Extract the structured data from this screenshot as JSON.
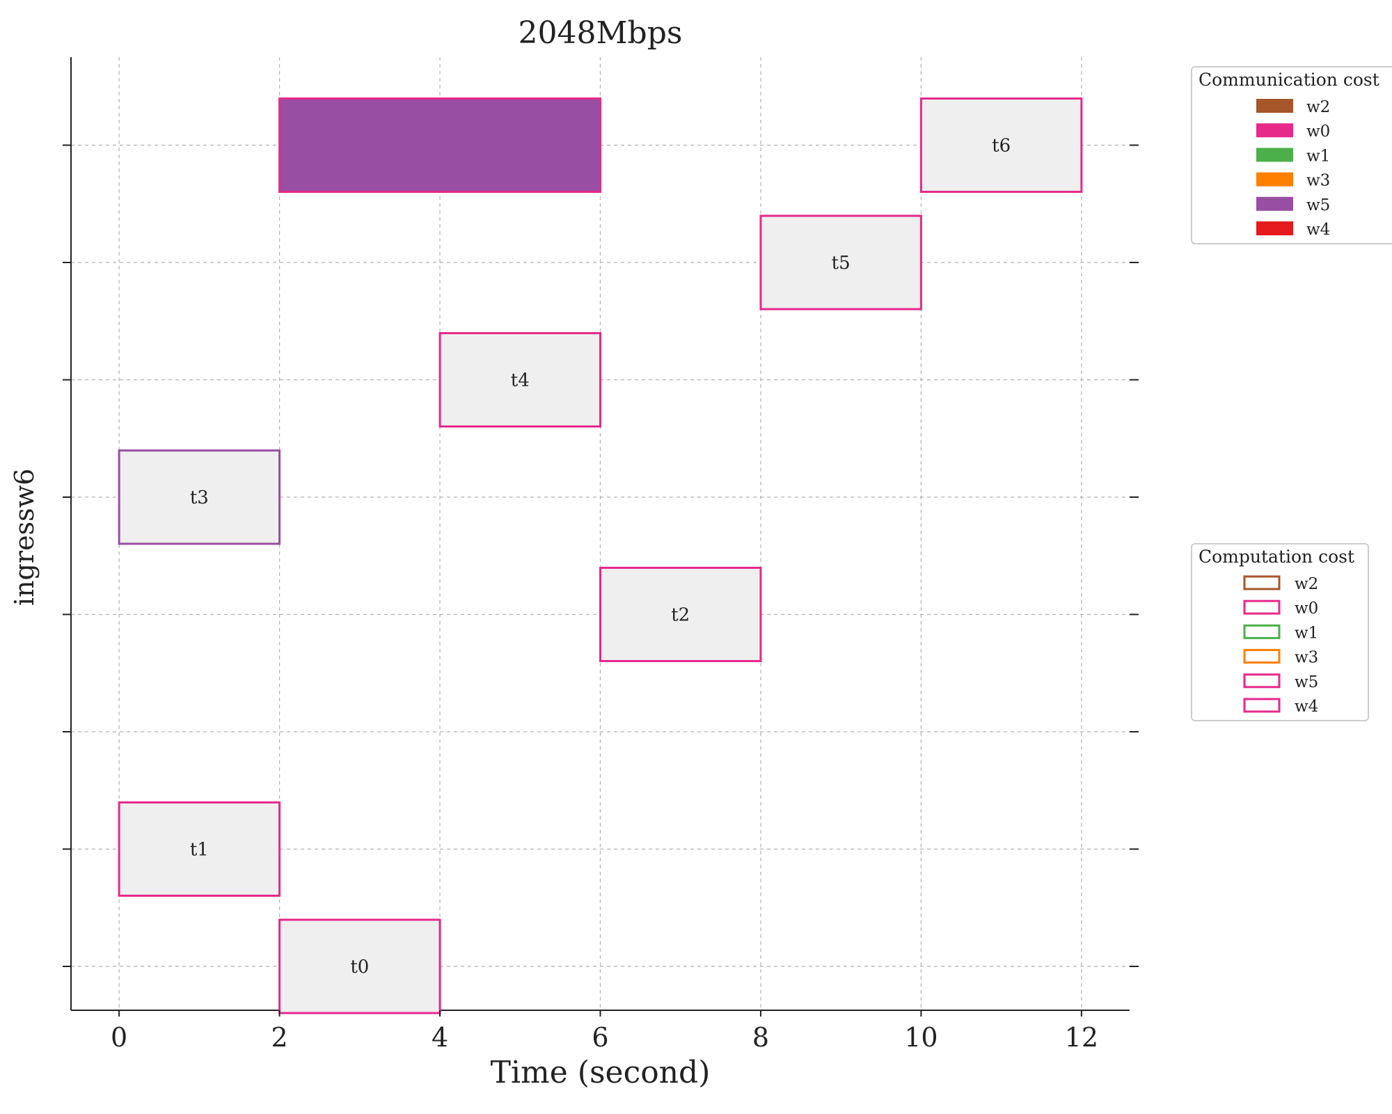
{
  "chart_data": {
    "type": "gantt",
    "title": "2048Mbps",
    "xlabel": "Time (second)",
    "ylabel": "ingressw6",
    "xlim": [
      -0.6,
      12.6
    ],
    "xticks": [
      "0",
      "2",
      "4",
      "6",
      "8",
      "10",
      "12"
    ],
    "grid": true,
    "rows": 8,
    "communication_bars": [
      {
        "row": 7,
        "start": 2,
        "end": 6,
        "fill": "#984ea3",
        "edge": "#e7298a"
      }
    ],
    "tasks": [
      {
        "label": "t0",
        "row": 0,
        "start": 2,
        "end": 4,
        "edge": "#e7298a"
      },
      {
        "label": "t1",
        "row": 1,
        "start": 0,
        "end": 2,
        "edge": "#e7298a"
      },
      {
        "label": "t2",
        "row": 3,
        "start": 6,
        "end": 8,
        "edge": "#e7298a"
      },
      {
        "label": "t3",
        "row": 4,
        "start": 0,
        "end": 2,
        "edge": "#984ea3"
      },
      {
        "label": "t4",
        "row": 5,
        "start": 4,
        "end": 6,
        "edge": "#e7298a"
      },
      {
        "label": "t5",
        "row": 6,
        "start": 8,
        "end": 10,
        "edge": "#e7298a"
      },
      {
        "label": "t6",
        "row": 7,
        "start": 10,
        "end": 12,
        "edge": "#e7298a"
      }
    ],
    "task_fill": "#efefef",
    "legends": [
      {
        "title": "Communication cost",
        "style": "filled",
        "items": [
          {
            "label": "w2",
            "color": "#a65628"
          },
          {
            "label": "w0",
            "color": "#e7298a"
          },
          {
            "label": "w1",
            "color": "#4daf4a"
          },
          {
            "label": "w3",
            "color": "#ff7f00"
          },
          {
            "label": "w5",
            "color": "#984ea3"
          },
          {
            "label": "w4",
            "color": "#e41a1c"
          }
        ]
      },
      {
        "title": "Computation cost",
        "style": "outline",
        "items": [
          {
            "label": "w2",
            "color": "#a65628"
          },
          {
            "label": "w0",
            "color": "#e7298a"
          },
          {
            "label": "w1",
            "color": "#4daf4a"
          },
          {
            "label": "w3",
            "color": "#ff7f00"
          },
          {
            "label": "w5",
            "color": "#e7298a"
          },
          {
            "label": "w4",
            "color": "#e7298a"
          }
        ]
      }
    ]
  }
}
